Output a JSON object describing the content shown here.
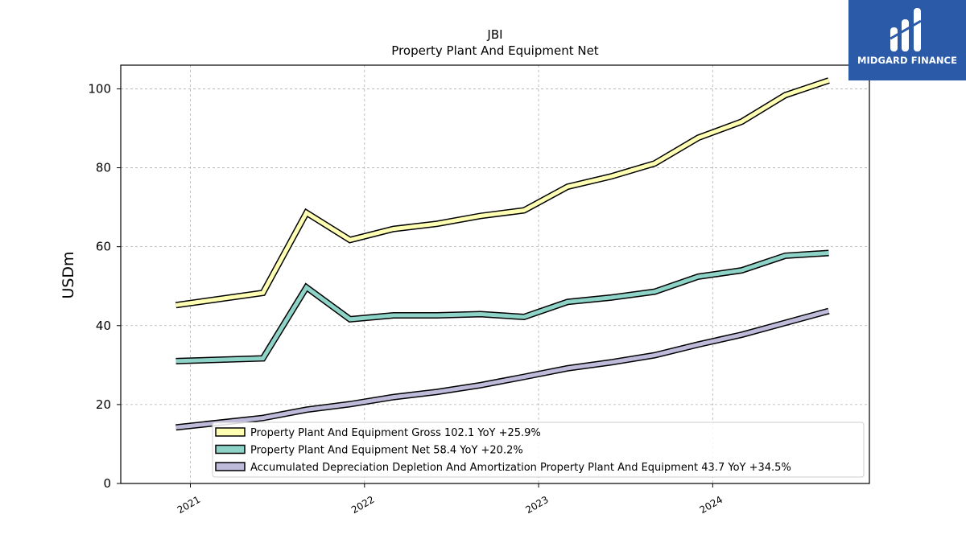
{
  "brand": {
    "name": "MIDGARD FINANCE",
    "bg_color": "#2a5aa8"
  },
  "chart_data": {
    "type": "line",
    "title": "JBI",
    "subtitle": "Property Plant And Equipment Net",
    "xlabel": "",
    "ylabel": "USDm",
    "x_ticks": [
      "2021",
      "2022",
      "2023",
      "2024"
    ],
    "ylim": [
      0,
      106
    ],
    "y_ticks": [
      0,
      20,
      40,
      60,
      80,
      100
    ],
    "grid": true,
    "legend_position": "bottom-right",
    "x": [
      "2020-12",
      "2021-06",
      "2021-09",
      "2021-12",
      "2022-03",
      "2022-06",
      "2022-09",
      "2022-12",
      "2023-03",
      "2023-06",
      "2023-09",
      "2023-12",
      "2024-03",
      "2024-06",
      "2024-09"
    ],
    "series": [
      {
        "name": "Property Plant And Equipment Gross",
        "legend_label": "Property Plant And Equipment Gross  102.1 YoY +25.9%",
        "color": "#ffffb3",
        "values": [
          45.2,
          48.3,
          68.6,
          61.7,
          64.5,
          65.8,
          67.8,
          69.2,
          75.2,
          77.8,
          81.1,
          87.6,
          91.7,
          98.4,
          102.1
        ]
      },
      {
        "name": "Property Plant And Equipment Net",
        "legend_label": "Property Plant And Equipment Net  58.4 YoY +20.2%",
        "color": "#8dd3c7",
        "values": [
          31.0,
          31.7,
          49.7,
          41.6,
          42.6,
          42.6,
          42.9,
          42.2,
          46.0,
          47.1,
          48.6,
          52.4,
          54.0,
          57.7,
          58.4
        ]
      },
      {
        "name": "Accumulated Depreciation Depletion And Amortization Property Plant And Equipment",
        "legend_label": "Accumulated Depreciation Depletion And Amortization Property Plant And Equipment  43.7 YoY +34.5%",
        "color": "#bebada",
        "values": [
          14.2,
          16.6,
          18.7,
          20.1,
          21.9,
          23.2,
          24.9,
          27.0,
          29.2,
          30.7,
          32.5,
          35.2,
          37.7,
          40.7,
          43.7
        ]
      }
    ]
  }
}
